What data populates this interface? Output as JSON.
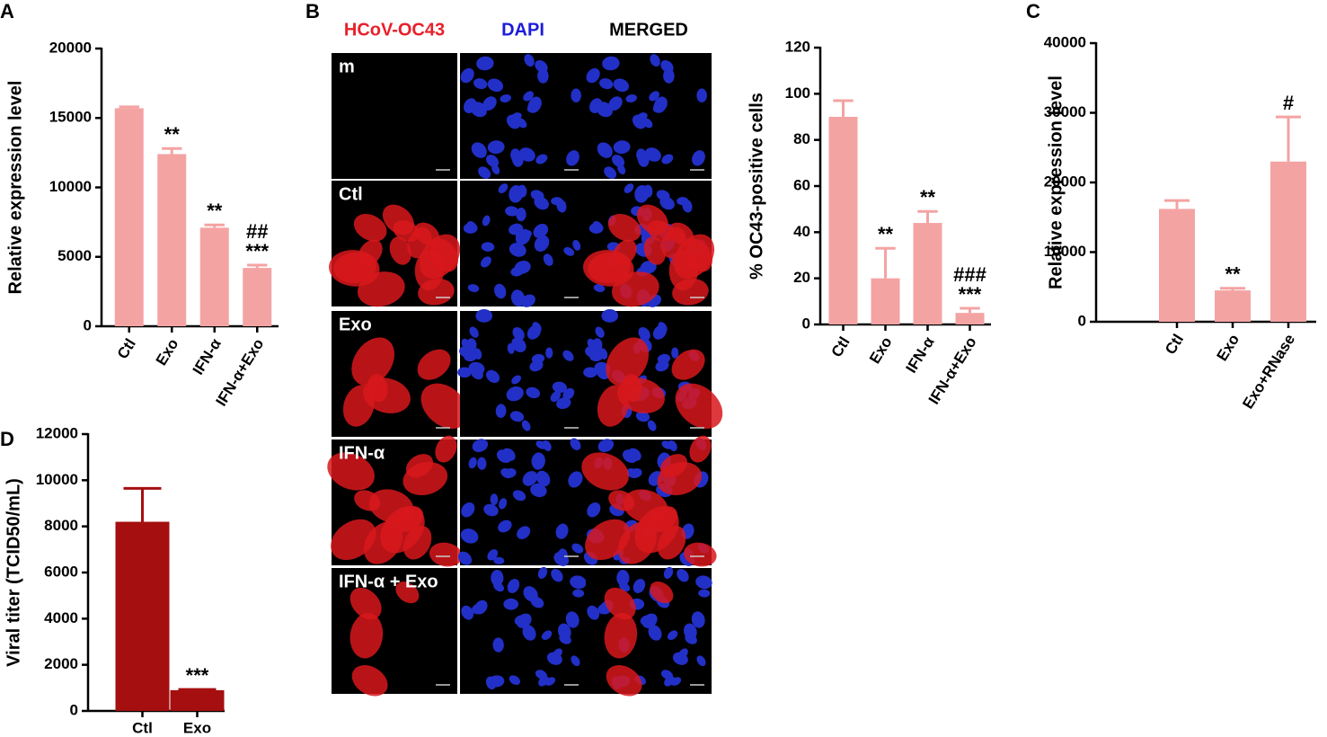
{
  "chart_data": [
    {
      "type": "bar",
      "panel": "A",
      "ylabel": "Relative expression level",
      "categories": [
        "Ctl",
        "Exo",
        "IFN-α",
        "IFN-α+Exo"
      ],
      "values": [
        15700,
        12400,
        7100,
        4200
      ],
      "errors": [
        100,
        400,
        200,
        200
      ],
      "annotations": [
        null,
        [
          "**"
        ],
        [
          "**"
        ],
        [
          "##",
          "***"
        ]
      ],
      "color": "#f4a3a3",
      "ylim": [
        0,
        20000
      ],
      "yticks": [
        0,
        5000,
        10000,
        15000,
        20000
      ]
    },
    {
      "type": "bar",
      "ylabel": "% OC43-positive cells",
      "categories": [
        "Ctl",
        "Exo",
        "IFN-α",
        "IFN-α+Exo"
      ],
      "values": [
        90,
        20,
        44,
        5
      ],
      "errors": [
        7,
        13,
        5,
        2
      ],
      "annotations": [
        null,
        [
          "**"
        ],
        [
          "**"
        ],
        [
          "###",
          "***"
        ]
      ],
      "color": "#f4a3a3",
      "ylim": [
        0,
        120
      ],
      "yticks": [
        0,
        20,
        40,
        60,
        80,
        100,
        120
      ]
    },
    {
      "type": "bar",
      "panel": "C",
      "ylabel": "Relative expression level",
      "categories": [
        "Ctl",
        "Exo",
        "Exo+RNase"
      ],
      "values": [
        16200,
        4500,
        23000
      ],
      "errors": [
        1200,
        300,
        6400
      ],
      "annotations": [
        null,
        [
          "**"
        ],
        [
          "#"
        ]
      ],
      "color": "#f4a3a3",
      "ylim": [
        0,
        40000
      ],
      "yticks": [
        0,
        10000,
        20000,
        30000,
        40000
      ]
    },
    {
      "type": "bar",
      "panel": "D",
      "ylabel": "Viral titer (TCID50/mL)",
      "categories": [
        "Ctl",
        "Exo"
      ],
      "values": [
        8200,
        900
      ],
      "errors": [
        1450,
        30
      ],
      "annotations": [
        null,
        [
          "***"
        ]
      ],
      "color": "#a50f0f",
      "ylim": [
        0,
        12000
      ],
      "yticks": [
        0,
        2000,
        4000,
        6000,
        8000,
        10000,
        12000
      ]
    }
  ],
  "microscopy": {
    "panel": "B",
    "columns": [
      {
        "label": "HCoV-OC43",
        "color": "#e8202a"
      },
      {
        "label": "DAPI",
        "color": "#1c1cd8"
      },
      {
        "label": "MERGED",
        "color": "#000000"
      }
    ],
    "rows": [
      "m",
      "Ctl",
      "Exo",
      "IFN-α",
      "IFN-α + Exo"
    ]
  }
}
